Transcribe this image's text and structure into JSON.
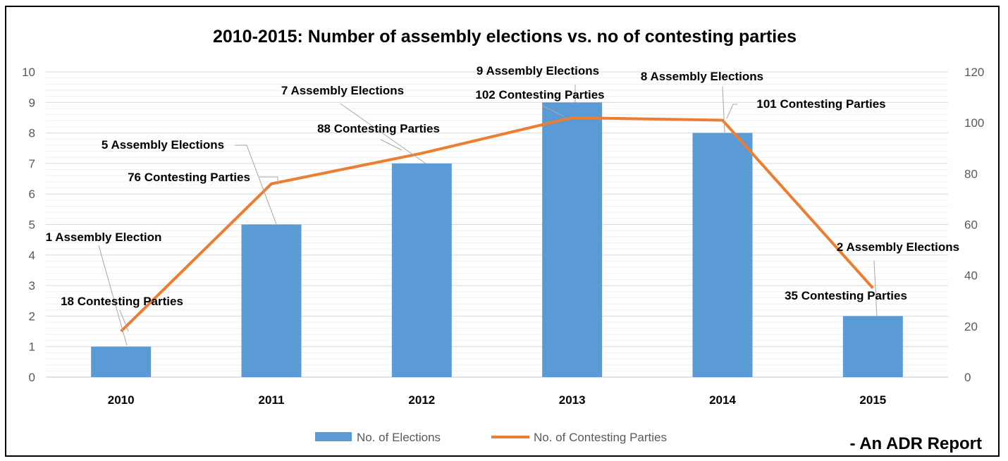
{
  "chart_data": {
    "type": "bar",
    "title": "2010-2015: Number of assembly elections vs. no of contesting parties",
    "categories": [
      "2010",
      "2011",
      "2012",
      "2013",
      "2014",
      "2015"
    ],
    "series": [
      {
        "name": "No. of Elections",
        "type": "bar",
        "axis": "left",
        "color": "#5B9BD5",
        "values": [
          1,
          5,
          7,
          9,
          8,
          2
        ],
        "data_labels": [
          "1 Assembly Election",
          "5 Assembly Elections",
          "7 Assembly Elections",
          "9 Assembly Elections",
          "8 Assembly Elections",
          "2 Assembly Elections"
        ]
      },
      {
        "name": "No. of Contesting Parties",
        "type": "line",
        "axis": "right",
        "color": "#ED7D31",
        "values": [
          18,
          76,
          88,
          102,
          101,
          35
        ],
        "data_labels": [
          "18 Contesting Parties",
          "76 Contesting Parties",
          "88 Contesting Parties",
          "102 Contesting Parties",
          "101 Contesting Parties",
          "35 Contesting Parties"
        ]
      }
    ],
    "y_left": {
      "min": 0,
      "max": 10,
      "ticks": [
        "0",
        "1",
        "2",
        "3",
        "4",
        "5",
        "6",
        "7",
        "8",
        "9",
        "10"
      ]
    },
    "y_right": {
      "min": 0,
      "max": 120,
      "ticks": [
        "0",
        "20",
        "40",
        "60",
        "80",
        "100",
        "120"
      ]
    },
    "grid": true,
    "legend_position": "bottom"
  },
  "annotation": "- An ADR Report"
}
